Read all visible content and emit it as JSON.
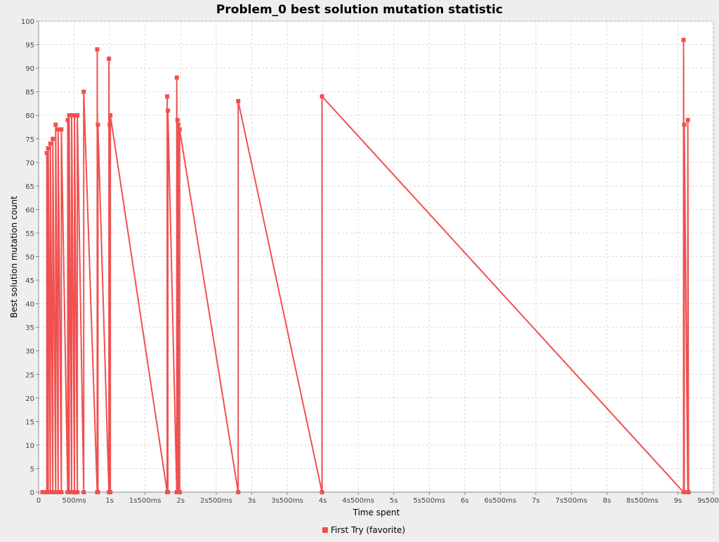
{
  "chart_data": {
    "type": "line",
    "title": "Problem_0 best solution mutation statistic",
    "xlabel": "Time spent",
    "ylabel": "Best solution mutation count",
    "xlim": [
      0,
      9500
    ],
    "ylim": [
      0,
      100
    ],
    "x_ticks": [
      {
        "value": 0,
        "label": "0"
      },
      {
        "value": 500,
        "label": "500ms"
      },
      {
        "value": 1000,
        "label": "1s"
      },
      {
        "value": 1500,
        "label": "1s500ms"
      },
      {
        "value": 2000,
        "label": "2s"
      },
      {
        "value": 2500,
        "label": "2s500ms"
      },
      {
        "value": 3000,
        "label": "3s"
      },
      {
        "value": 3500,
        "label": "3s500ms"
      },
      {
        "value": 4000,
        "label": "4s"
      },
      {
        "value": 4500,
        "label": "4s500ms"
      },
      {
        "value": 5000,
        "label": "5s"
      },
      {
        "value": 5500,
        "label": "5s500ms"
      },
      {
        "value": 6000,
        "label": "6s"
      },
      {
        "value": 6500,
        "label": "6s500ms"
      },
      {
        "value": 7000,
        "label": "7s"
      },
      {
        "value": 7500,
        "label": "7s500ms"
      },
      {
        "value": 8000,
        "label": "8s"
      },
      {
        "value": 8500,
        "label": "8s500ms"
      },
      {
        "value": 9000,
        "label": "9s"
      },
      {
        "value": 9500,
        "label": "9s500ms"
      }
    ],
    "y_ticks": [
      0,
      5,
      10,
      15,
      20,
      25,
      30,
      35,
      40,
      45,
      50,
      55,
      60,
      65,
      70,
      75,
      80,
      85,
      90,
      95,
      100
    ],
    "grid": true,
    "legend_position": "bottom-center",
    "series": [
      {
        "name": "First Try (favorite)",
        "color": "#f05050",
        "points": [
          {
            "x": 55,
            "y": 0
          },
          {
            "x": 115,
            "y": 0
          },
          {
            "x": 115,
            "y": 72
          },
          {
            "x": 135,
            "y": 0
          },
          {
            "x": 135,
            "y": 73
          },
          {
            "x": 165,
            "y": 0
          },
          {
            "x": 165,
            "y": 74
          },
          {
            "x": 200,
            "y": 0
          },
          {
            "x": 200,
            "y": 75
          },
          {
            "x": 240,
            "y": 0
          },
          {
            "x": 240,
            "y": 78
          },
          {
            "x": 275,
            "y": 0
          },
          {
            "x": 275,
            "y": 77
          },
          {
            "x": 320,
            "y": 0
          },
          {
            "x": 320,
            "y": 77
          },
          {
            "x": 410,
            "y": 0
          },
          {
            "x": 410,
            "y": 79
          },
          {
            "x": 430,
            "y": 0
          },
          {
            "x": 430,
            "y": 80
          },
          {
            "x": 465,
            "y": 0
          },
          {
            "x": 465,
            "y": 80
          },
          {
            "x": 505,
            "y": 0
          },
          {
            "x": 505,
            "y": 80
          },
          {
            "x": 545,
            "y": 0
          },
          {
            "x": 545,
            "y": 80
          },
          {
            "x": 635,
            "y": 0
          },
          {
            "x": 635,
            "y": 85
          },
          {
            "x": 825,
            "y": 0
          },
          {
            "x": 825,
            "y": 94
          },
          {
            "x": 835,
            "y": 0
          },
          {
            "x": 835,
            "y": 78
          },
          {
            "x": 990,
            "y": 0
          },
          {
            "x": 990,
            "y": 92
          },
          {
            "x": 1000,
            "y": 0
          },
          {
            "x": 1000,
            "y": 78
          },
          {
            "x": 1010,
            "y": 0
          },
          {
            "x": 1010,
            "y": 80
          },
          {
            "x": 1810,
            "y": 0
          },
          {
            "x": 1810,
            "y": 84
          },
          {
            "x": 1820,
            "y": 0
          },
          {
            "x": 1820,
            "y": 81
          },
          {
            "x": 1945,
            "y": 0
          },
          {
            "x": 1945,
            "y": 88
          },
          {
            "x": 1955,
            "y": 0
          },
          {
            "x": 1955,
            "y": 79
          },
          {
            "x": 1965,
            "y": 0
          },
          {
            "x": 1965,
            "y": 78
          },
          {
            "x": 1985,
            "y": 0
          },
          {
            "x": 1985,
            "y": 77
          },
          {
            "x": 2810,
            "y": 0
          },
          {
            "x": 2810,
            "y": 83
          },
          {
            "x": 3990,
            "y": 0
          },
          {
            "x": 3990,
            "y": 84
          },
          {
            "x": 9080,
            "y": 0
          },
          {
            "x": 9080,
            "y": 96
          },
          {
            "x": 9090,
            "y": 0
          },
          {
            "x": 9090,
            "y": 78
          },
          {
            "x": 9140,
            "y": 0
          },
          {
            "x": 9140,
            "y": 79
          },
          {
            "x": 9150,
            "y": 0
          }
        ]
      }
    ]
  }
}
